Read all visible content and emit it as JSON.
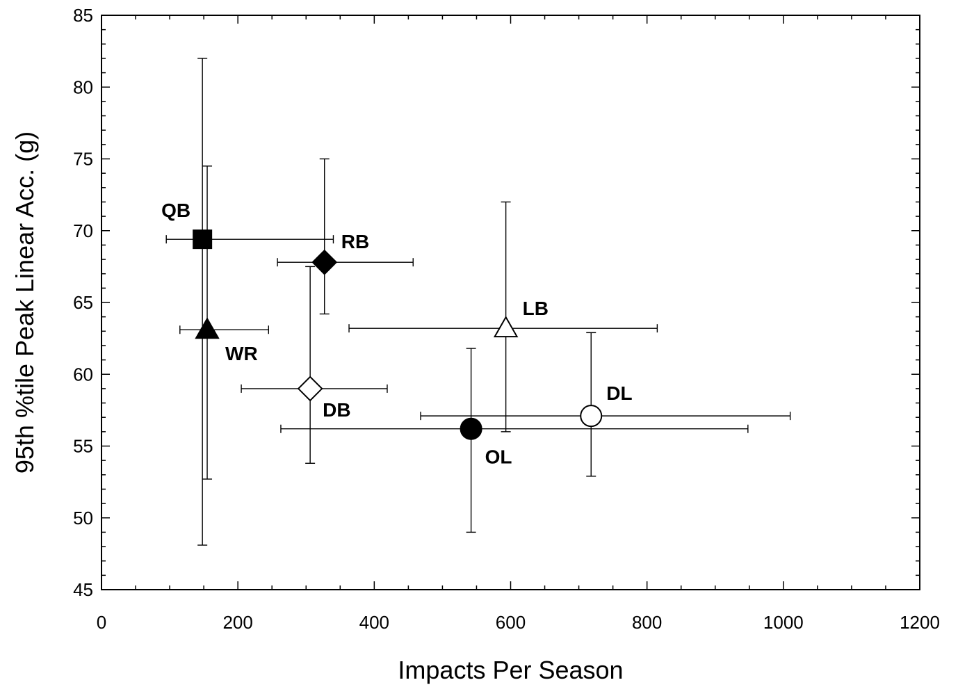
{
  "chart_data": {
    "type": "scatter",
    "title": "",
    "xlabel": "Impacts Per Season",
    "ylabel": "95th %tile Peak Linear Acc. (g)",
    "xlim": [
      0,
      1200
    ],
    "ylim": [
      45,
      85
    ],
    "x_ticks": [
      0,
      200,
      400,
      600,
      800,
      1000,
      1200
    ],
    "y_ticks": [
      45,
      50,
      55,
      60,
      65,
      70,
      75,
      80,
      85
    ],
    "grid": false,
    "legend": "none",
    "points": [
      {
        "label": "QB",
        "marker": "square",
        "fill": "filled",
        "x": 148,
        "y": 69.4,
        "x_err": [
          95,
          340
        ],
        "y_err": [
          48.1,
          82.0
        ]
      },
      {
        "label": "WR",
        "marker": "triangle",
        "fill": "filled",
        "x": 155,
        "y": 63.1,
        "x_err": [
          115,
          245
        ],
        "y_err": [
          52.7,
          74.5
        ]
      },
      {
        "label": "RB",
        "marker": "diamond",
        "fill": "filled",
        "x": 327,
        "y": 67.8,
        "x_err": [
          258,
          457
        ],
        "y_err": [
          64.2,
          75.0
        ]
      },
      {
        "label": "DB",
        "marker": "diamond",
        "fill": "open",
        "x": 306,
        "y": 59.0,
        "x_err": [
          205,
          419
        ],
        "y_err": [
          53.8,
          67.5
        ]
      },
      {
        "label": "LB",
        "marker": "triangle",
        "fill": "open",
        "x": 593,
        "y": 63.2,
        "x_err": [
          363,
          815
        ],
        "y_err": [
          56.0,
          72.0
        ]
      },
      {
        "label": "OL",
        "marker": "circle",
        "fill": "filled",
        "x": 542,
        "y": 56.2,
        "x_err": [
          263,
          948
        ],
        "y_err": [
          49.0,
          61.8
        ]
      },
      {
        "label": "DL",
        "marker": "circle",
        "fill": "open",
        "x": 718,
        "y": 57.1,
        "x_err": [
          468,
          1010
        ],
        "y_err": [
          52.9,
          62.9
        ]
      }
    ]
  }
}
